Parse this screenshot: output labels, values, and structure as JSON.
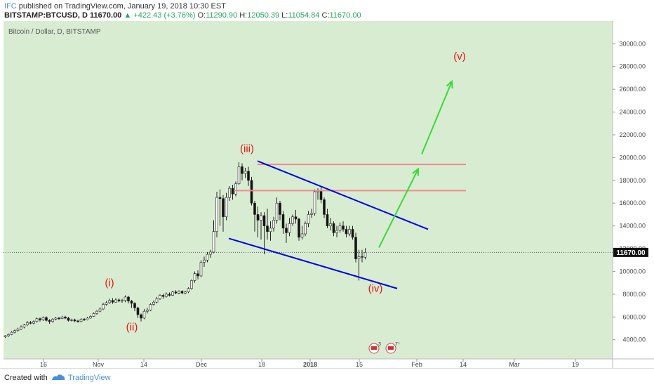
{
  "header": {
    "line1": {
      "author": "IFC",
      "text": "published on TradingView.com, January 19, 2018 10:30 EST"
    },
    "line2": {
      "symbol": "BITSTAMP:BTCUSD, D",
      "last": "11670.00",
      "change": "▲ +422.43 (+3.76%)",
      "o_label": "O:",
      "o": "11290.90",
      "h_label": "H:",
      "h": "12050.39",
      "l_label": "L:",
      "l": "11054.84",
      "c_label": "C:",
      "c": "11670.00"
    }
  },
  "footer": {
    "created_with": "Created with",
    "brand": "TradingView"
  },
  "colors": {
    "plot_bg": "#d8ecd1",
    "trendline": "#0000ee",
    "resistance": "#f08a8a",
    "arrow": "#33dd33",
    "wave_label": "#e8120c",
    "price_badge": "#111111"
  },
  "chart_data": {
    "type": "candlestick",
    "title": "Bitcoin / Dollar, D, BITSTAMP",
    "x_ticks": [
      "16",
      "Nov",
      "14",
      "Dec",
      "18",
      "2018",
      "15",
      "Feb",
      "14",
      "Mar",
      "19"
    ],
    "y_ticks": [
      "4000.00",
      "6000.00",
      "8000.00",
      "10000.00",
      "12000.00",
      "14000.00",
      "16000.00",
      "18000.00",
      "20000.00",
      "22000.00",
      "24000.00",
      "26000.00",
      "28000.00",
      "30000.00"
    ],
    "ylim": [
      2500,
      31500
    ],
    "current_price": "11670.00",
    "candles": [
      [
        4250,
        4350,
        4150,
        4400
      ],
      [
        4350,
        4450,
        4250,
        4550
      ],
      [
        4450,
        4650,
        4400,
        4750
      ],
      [
        4650,
        4800,
        4550,
        4900
      ],
      [
        4800,
        4950,
        4700,
        5050
      ],
      [
        4950,
        5100,
        4850,
        5250
      ],
      [
        5100,
        5300,
        5000,
        5400
      ],
      [
        5300,
        5500,
        5200,
        5650
      ],
      [
        5500,
        5450,
        5350,
        5650
      ],
      [
        5450,
        5600,
        5350,
        5700
      ],
      [
        5600,
        5850,
        5500,
        5950
      ],
      [
        5850,
        5750,
        5600,
        5950
      ],
      [
        5750,
        5950,
        5650,
        6050
      ],
      [
        5950,
        5700,
        5600,
        6050
      ],
      [
        5700,
        5600,
        5400,
        5800
      ],
      [
        5600,
        5800,
        5500,
        5900
      ],
      [
        5800,
        5900,
        5700,
        6000
      ],
      [
        5900,
        5850,
        5750,
        6000
      ],
      [
        5850,
        6000,
        5800,
        6100
      ],
      [
        6000,
        5900,
        5800,
        6100
      ],
      [
        5900,
        5700,
        5600,
        6000
      ],
      [
        5700,
        5750,
        5600,
        5850
      ],
      [
        5750,
        5650,
        5550,
        5850
      ],
      [
        5650,
        5600,
        5500,
        5750
      ],
      [
        5600,
        5800,
        5550,
        5900
      ],
      [
        5800,
        5750,
        5650,
        5900
      ],
      [
        5750,
        5900,
        5700,
        6000
      ],
      [
        5900,
        6050,
        5850,
        6150
      ],
      [
        6050,
        6300,
        6000,
        6400
      ],
      [
        6300,
        6500,
        6200,
        6600
      ],
      [
        6500,
        6700,
        6400,
        6850
      ],
      [
        6700,
        7100,
        6600,
        7250
      ],
      [
        7100,
        7250,
        7000,
        7400
      ],
      [
        7250,
        7450,
        7150,
        7600
      ],
      [
        7450,
        7300,
        7150,
        7650
      ],
      [
        7300,
        7500,
        7250,
        7650
      ],
      [
        7500,
        7400,
        7300,
        7650
      ],
      [
        7400,
        7450,
        7250,
        7600
      ],
      [
        7450,
        7750,
        7300,
        7900
      ],
      [
        7750,
        7400,
        7200,
        7850
      ],
      [
        7400,
        7200,
        6800,
        7500
      ],
      [
        7200,
        6800,
        6500,
        7300
      ],
      [
        6800,
        6200,
        5900,
        6900
      ],
      [
        6200,
        5900,
        5600,
        6300
      ],
      [
        5900,
        6500,
        5800,
        6700
      ],
      [
        6500,
        6600,
        6300,
        6800
      ],
      [
        6600,
        7100,
        6500,
        7200
      ],
      [
        7100,
        7300,
        7000,
        7450
      ],
      [
        7300,
        7600,
        7200,
        7750
      ],
      [
        7600,
        7900,
        7500,
        8000
      ],
      [
        7900,
        7800,
        7600,
        8050
      ],
      [
        7800,
        8000,
        7700,
        8150
      ],
      [
        8000,
        7900,
        7800,
        8150
      ],
      [
        7900,
        8200,
        7850,
        8300
      ],
      [
        8200,
        8100,
        8000,
        8350
      ],
      [
        8100,
        8250,
        8000,
        8350
      ],
      [
        8250,
        8100,
        8000,
        8350
      ],
      [
        8100,
        8200,
        8000,
        8300
      ],
      [
        8200,
        8500,
        8100,
        8600
      ],
      [
        8500,
        9200,
        8400,
        9300
      ],
      [
        9200,
        9800,
        9000,
        10000
      ],
      [
        9800,
        9600,
        9300,
        10100
      ],
      [
        9600,
        10800,
        9500,
        11000
      ],
      [
        10800,
        11000,
        10400,
        11300
      ],
      [
        11000,
        11500,
        10800,
        11700
      ],
      [
        11500,
        11700,
        11200,
        11900
      ],
      [
        11700,
        13500,
        11600,
        14500
      ],
      [
        13500,
        16500,
        13000,
        17000
      ],
      [
        16500,
        16400,
        14000,
        17200
      ],
      [
        16400,
        14800,
        13500,
        16700
      ],
      [
        14800,
        16500,
        14500,
        16900
      ],
      [
        16500,
        17300,
        16200,
        17500
      ],
      [
        17300,
        16800,
        16300,
        17600
      ],
      [
        16800,
        17700,
        16600,
        17900
      ],
      [
        17700,
        19200,
        17600,
        19600
      ],
      [
        19200,
        18600,
        18000,
        19500
      ],
      [
        18600,
        18800,
        18200,
        19100
      ],
      [
        18800,
        18000,
        17500,
        19200
      ],
      [
        18000,
        16000,
        15800,
        18300
      ],
      [
        16000,
        15000,
        13500,
        16200
      ],
      [
        15000,
        14500,
        13000,
        15700
      ],
      [
        14500,
        14900,
        12800,
        15200
      ],
      [
        14900,
        14000,
        11500,
        15200
      ],
      [
        14000,
        13500,
        12800,
        15500
      ],
      [
        13500,
        13800,
        12700,
        14400
      ],
      [
        13800,
        14500,
        13500,
        14800
      ],
      [
        14500,
        16000,
        14200,
        16500
      ],
      [
        16000,
        15000,
        14500,
        16200
      ],
      [
        15000,
        13800,
        13300,
        15300
      ],
      [
        13800,
        13400,
        12500,
        14200
      ],
      [
        13400,
        14200,
        13100,
        14700
      ],
      [
        14200,
        14800,
        14000,
        15000
      ],
      [
        14800,
        14600,
        14200,
        15400
      ],
      [
        14600,
        13000,
        12700,
        14700
      ],
      [
        13000,
        13300,
        12800,
        14000
      ],
      [
        13300,
        14200,
        13100,
        14400
      ],
      [
        14200,
        15000,
        13900,
        15300
      ],
      [
        15000,
        15100,
        14700,
        15500
      ],
      [
        15100,
        17000,
        14900,
        17200
      ],
      [
        17000,
        17100,
        16300,
        17300
      ],
      [
        17100,
        16300,
        16000,
        17400
      ],
      [
        16300,
        15000,
        14700,
        16500
      ],
      [
        15000,
        14000,
        13800,
        15500
      ],
      [
        14000,
        14200,
        13600,
        14700
      ],
      [
        14200,
        13400,
        13100,
        14400
      ],
      [
        13400,
        13600,
        13000,
        14000
      ],
      [
        13600,
        14000,
        13400,
        14300
      ],
      [
        14000,
        13700,
        13500,
        14400
      ],
      [
        13700,
        13300,
        13000,
        14000
      ],
      [
        13300,
        13700,
        13100,
        14000
      ],
      [
        13700,
        13000,
        12800,
        14000
      ],
      [
        13000,
        11100,
        10800,
        13400
      ],
      [
        11100,
        11300,
        9200,
        11900
      ],
      [
        11300,
        11250,
        10800,
        11900
      ],
      [
        11250,
        11670,
        11050,
        12050
      ]
    ],
    "drawings": {
      "upper_trendline": {
        "from": [
          "17 Dec 2017",
          19700
        ],
        "to": [
          "Feb 2018",
          13700
        ]
      },
      "lower_trendline": {
        "from": [
          "6 Dec 2017",
          12900
        ],
        "to": [
          "25 Jan 2018",
          8500
        ]
      },
      "resistance_levels": [
        19400,
        17100
      ],
      "arrow_1": {
        "from": [
          "19 Jan 2018",
          12100
        ],
        "to": [
          "22 Jan 2018",
          19000
        ]
      },
      "arrow_2": {
        "from": [
          "23 Jan 2018",
          20300
        ],
        "to": [
          "Feb 2018",
          26700
        ]
      }
    },
    "annotations": [
      {
        "text": "(i)",
        "x": "late Oct 2017",
        "y": 8700
      },
      {
        "text": "(ii)",
        "x": "mid Nov 2017",
        "y": 4800
      },
      {
        "text": "(iii)",
        "x": "mid Dec 2017",
        "y": 20500
      },
      {
        "text": "(iv)",
        "x": "mid Jan 2018",
        "y": 8200
      },
      {
        "text": "(v)",
        "x": "Feb 2018",
        "y": 28600
      }
    ],
    "event_markers": [
      {
        "text": "3"
      },
      {
        "text": "7⁺"
      }
    ]
  }
}
